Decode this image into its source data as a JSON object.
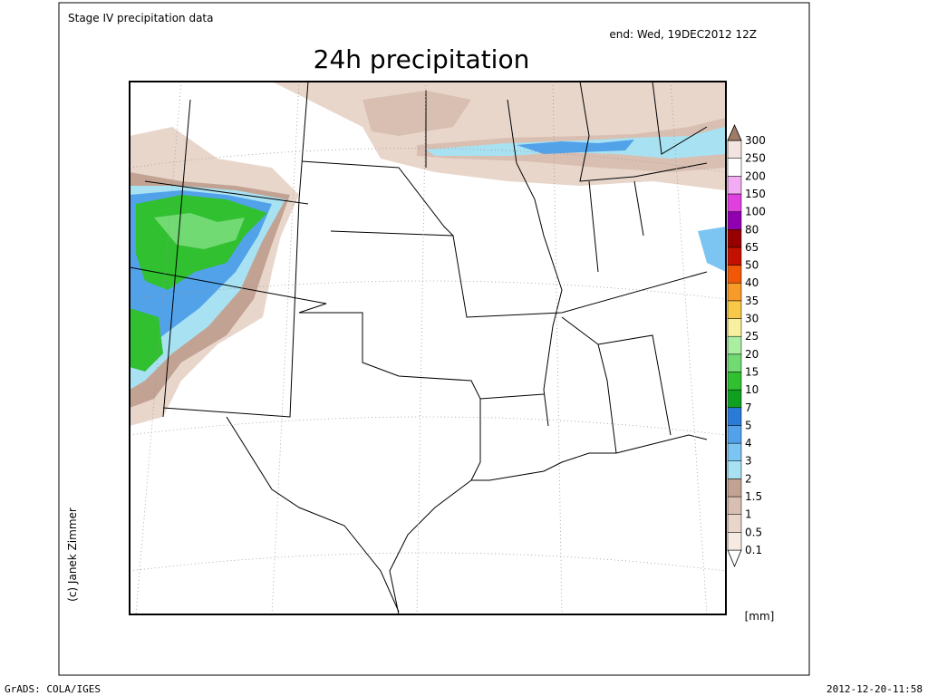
{
  "header": {
    "source": "Stage IV precipitation data",
    "end": "end: Wed, 19DEC2012 12Z",
    "title": "24h precipitation",
    "credit": "(c) Janek Zimmer"
  },
  "legend": {
    "unit": "[mm]",
    "levels": [
      0.1,
      0.5,
      1,
      1.5,
      2,
      3,
      4,
      5,
      7,
      10,
      15,
      20,
      25,
      30,
      35,
      40,
      50,
      65,
      80,
      100,
      150,
      200,
      250,
      300
    ],
    "colors": [
      "#ffffff",
      "#f6eae3",
      "#e9d6cb",
      "#d9bfb2",
      "#c2a393",
      "#a8e2f2",
      "#7cc4f2",
      "#52a2ea",
      "#2a7ad8",
      "#10a020",
      "#30c030",
      "#72da72",
      "#aaeea2",
      "#f8f0a0",
      "#f8c848",
      "#f89a28",
      "#f05808",
      "#c41000",
      "#960000",
      "#9000b0",
      "#e040e0",
      "#f2acf2",
      "#ffffff",
      "#f2e4e0",
      "#a07c66"
    ]
  },
  "footer": {
    "left": "GrADS: COLA/IGES",
    "right": "2012-12-20-11:58"
  }
}
